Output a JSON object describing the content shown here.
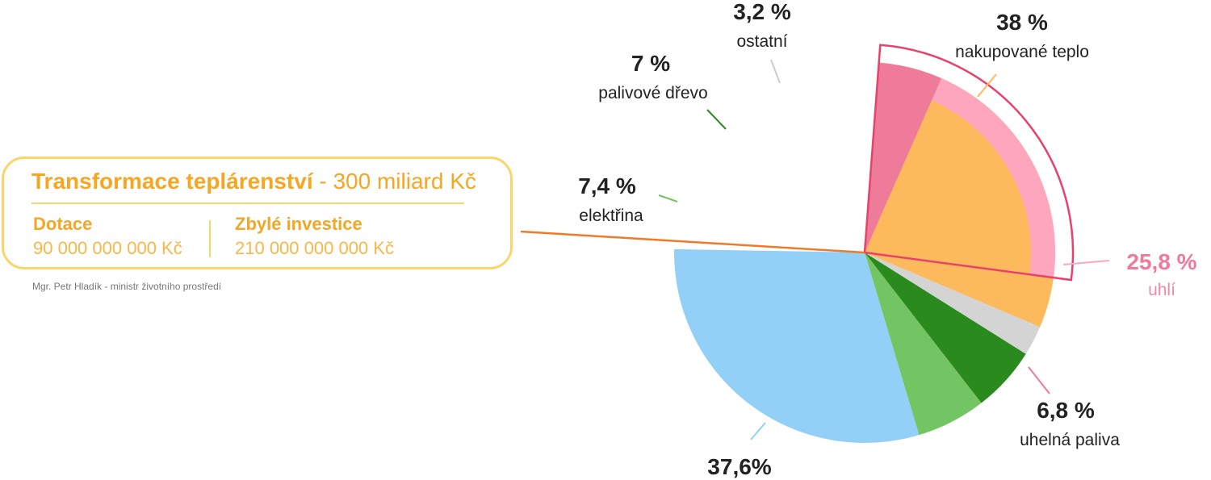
{
  "info": {
    "title_bold": "Transformace teplárenství",
    "title_rest": " - 300 miliard Kč",
    "col1_header": "Dotace",
    "col1_value": "90 000 000 000 Kč",
    "col2_header": "Zbylé investice",
    "col2_value": "210 000 000 000 Kč"
  },
  "caption": "Mgr. Petr Hladík - ministr životního prostředí",
  "chart_data": {
    "type": "pie",
    "title": "",
    "slices": [
      {
        "label": "",
        "value_label": "37,6%",
        "value": 37.6,
        "color": "#93d0f7"
      },
      {
        "label": "elektřina",
        "value_label": "7,4 %",
        "value": 7.4,
        "color": "#72c562"
      },
      {
        "label": "palivové dřevo",
        "value_label": "7 %",
        "value": 7.0,
        "color": "#2a8a1e"
      },
      {
        "label": "ostatní",
        "value_label": "3,2 %",
        "value": 3.2,
        "color": "#d4d4d4"
      },
      {
        "label": "nakupované teplo",
        "value_label": "38 %",
        "value": 38.0,
        "color": "#fdba5c"
      },
      {
        "label": "uhlí",
        "value_label": "25,8 %",
        "value": 25.8,
        "color": "#fda6bd"
      },
      {
        "label": "uhelná paliva",
        "value_label": "6,8 %",
        "value": 6.8,
        "color": "#ee7b99"
      }
    ],
    "highlight_color": "#e8426b",
    "connector_color": "#f07a2a"
  }
}
